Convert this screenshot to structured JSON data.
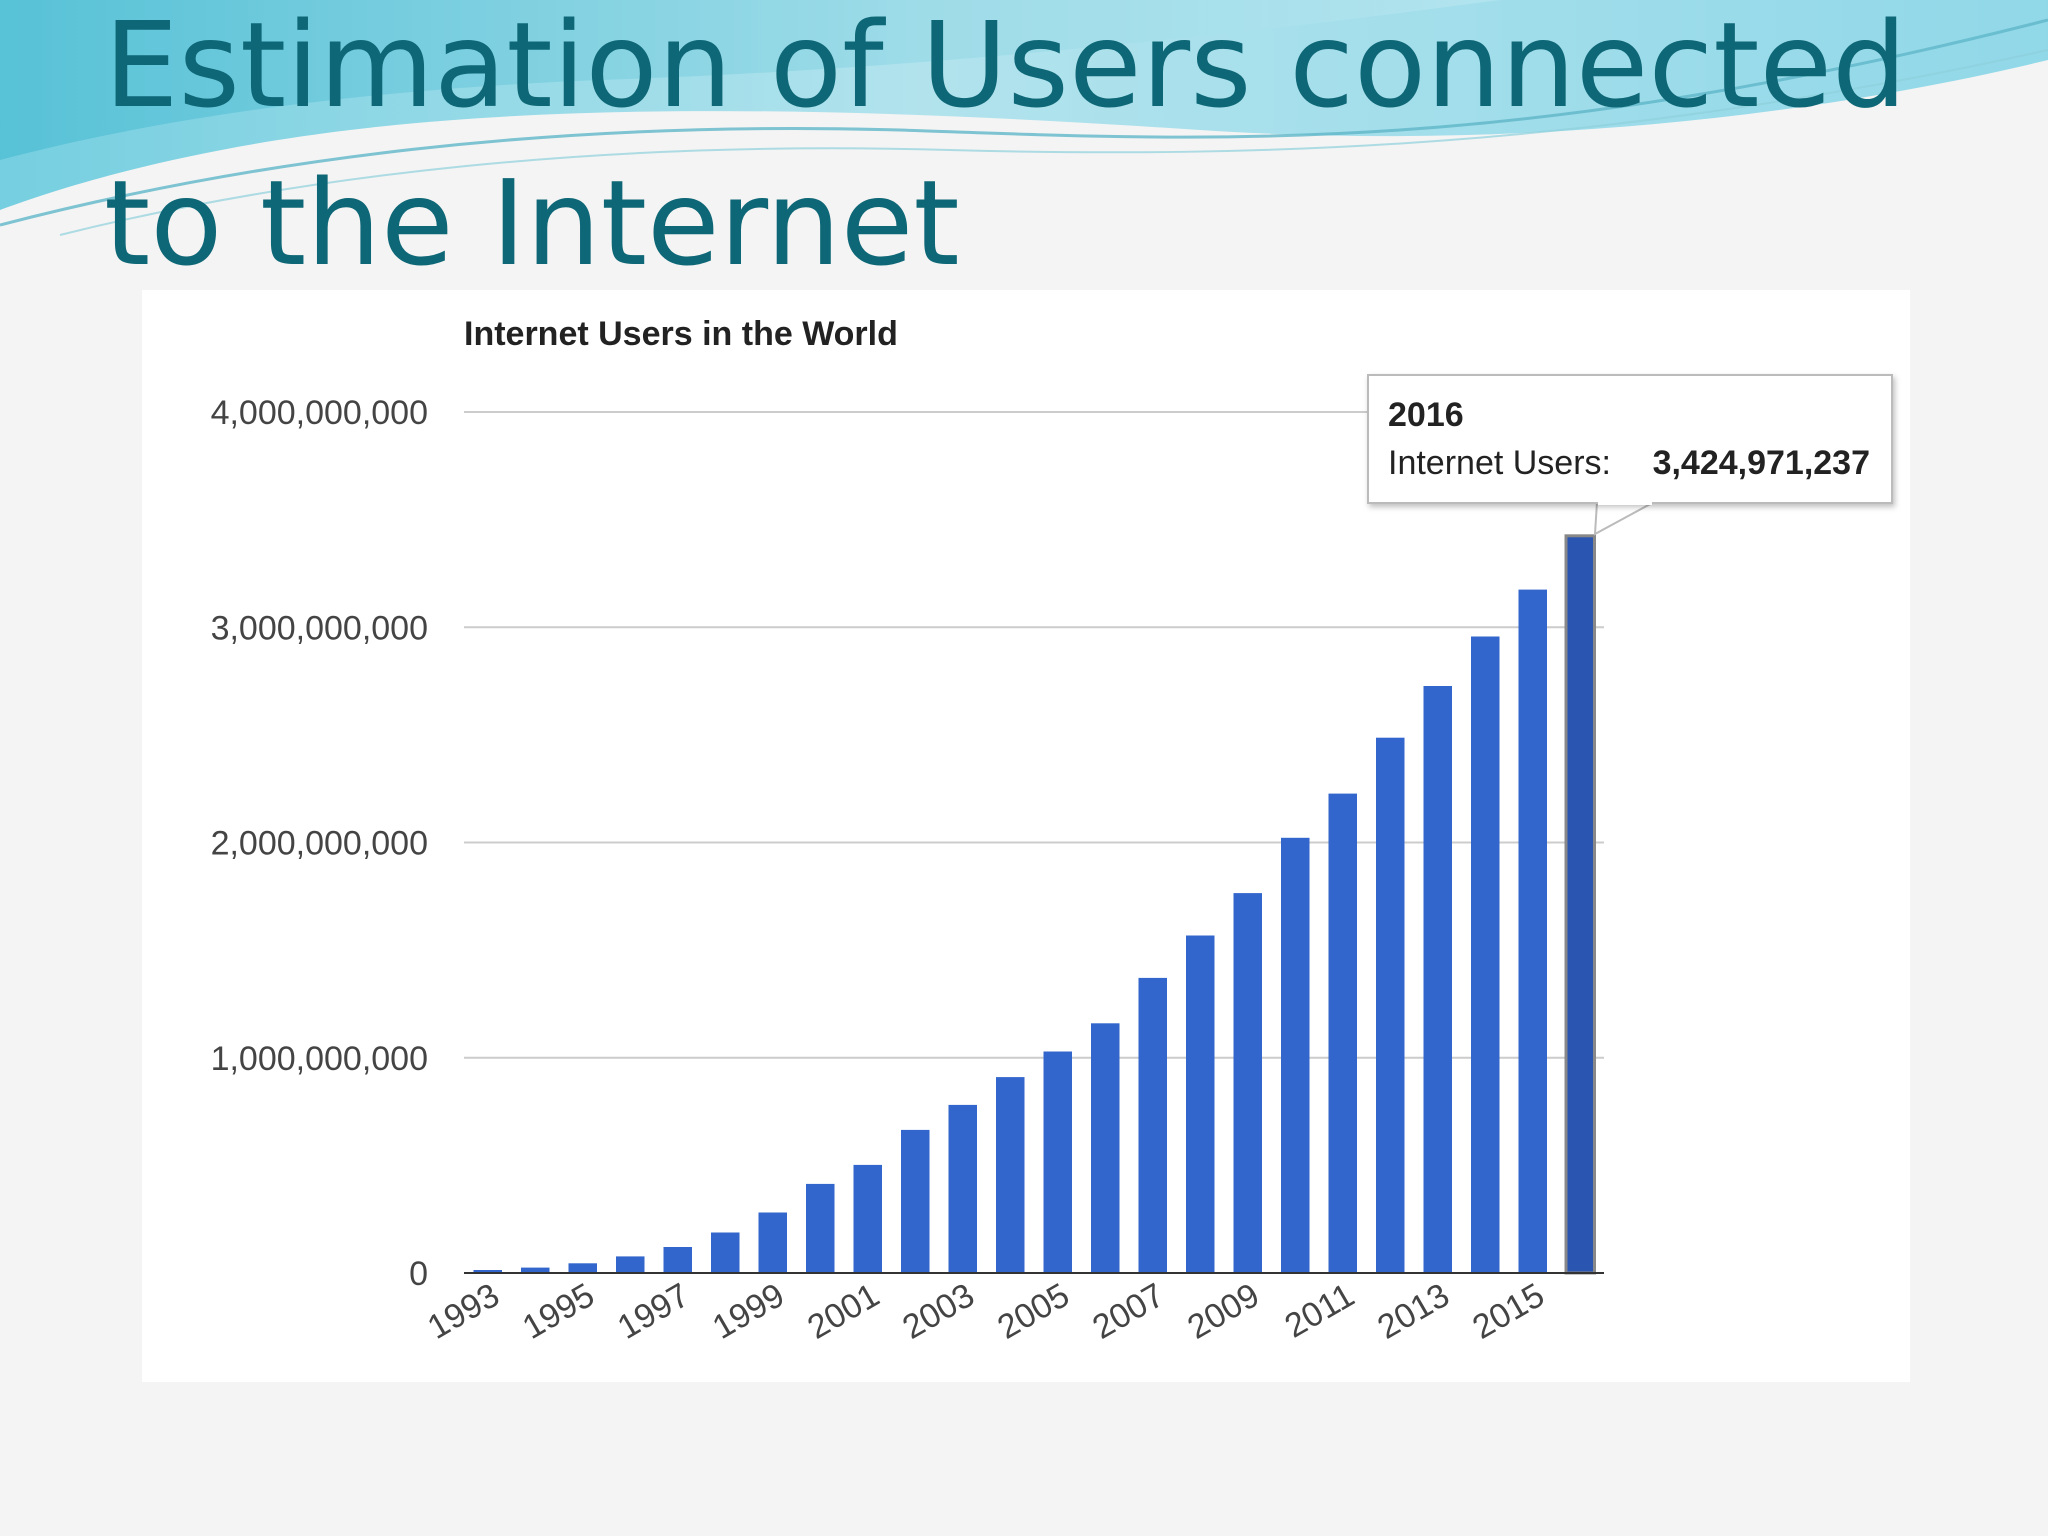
{
  "slide": {
    "title": "Estimation of Users connected to the Internet"
  },
  "chart_data": {
    "type": "bar",
    "title": "Internet Users in the World",
    "xlabel": "",
    "ylabel": "",
    "ylim": [
      0,
      4000000000
    ],
    "yticks": [
      "0",
      "1,000,000,000",
      "2,000,000,000",
      "3,000,000,000",
      "4,000,000,000"
    ],
    "xtick_labels": [
      "1993",
      "1995",
      "1997",
      "1999",
      "2001",
      "2003",
      "2005",
      "2007",
      "2009",
      "2011",
      "2013",
      "2015"
    ],
    "grid": true,
    "legend": "none",
    "categories": [
      "1993",
      "1994",
      "1995",
      "1996",
      "1997",
      "1998",
      "1999",
      "2000",
      "2001",
      "2002",
      "2003",
      "2004",
      "2005",
      "2006",
      "2007",
      "2008",
      "2009",
      "2010",
      "2011",
      "2012",
      "2013",
      "2014",
      "2015",
      "2016"
    ],
    "series": [
      {
        "values": [
          14000000,
          25000000,
          45000000,
          77000000,
          121000000,
          188000000,
          281000000,
          414000000,
          502000000,
          665000000,
          781000000,
          910000000,
          1029000000,
          1160000000,
          1371000000,
          1568000000,
          1765000000,
          2022000000,
          2227000000,
          2487000000,
          2727000000,
          2957000000,
          3175000000,
          3424971237
        ]
      }
    ],
    "bar_color": "#3366cc",
    "highlighted_bar_color": "#2a55b0",
    "tooltip": {
      "category": "2016",
      "label": "Internet Users:",
      "value_text": "3,424,971,237"
    }
  }
}
